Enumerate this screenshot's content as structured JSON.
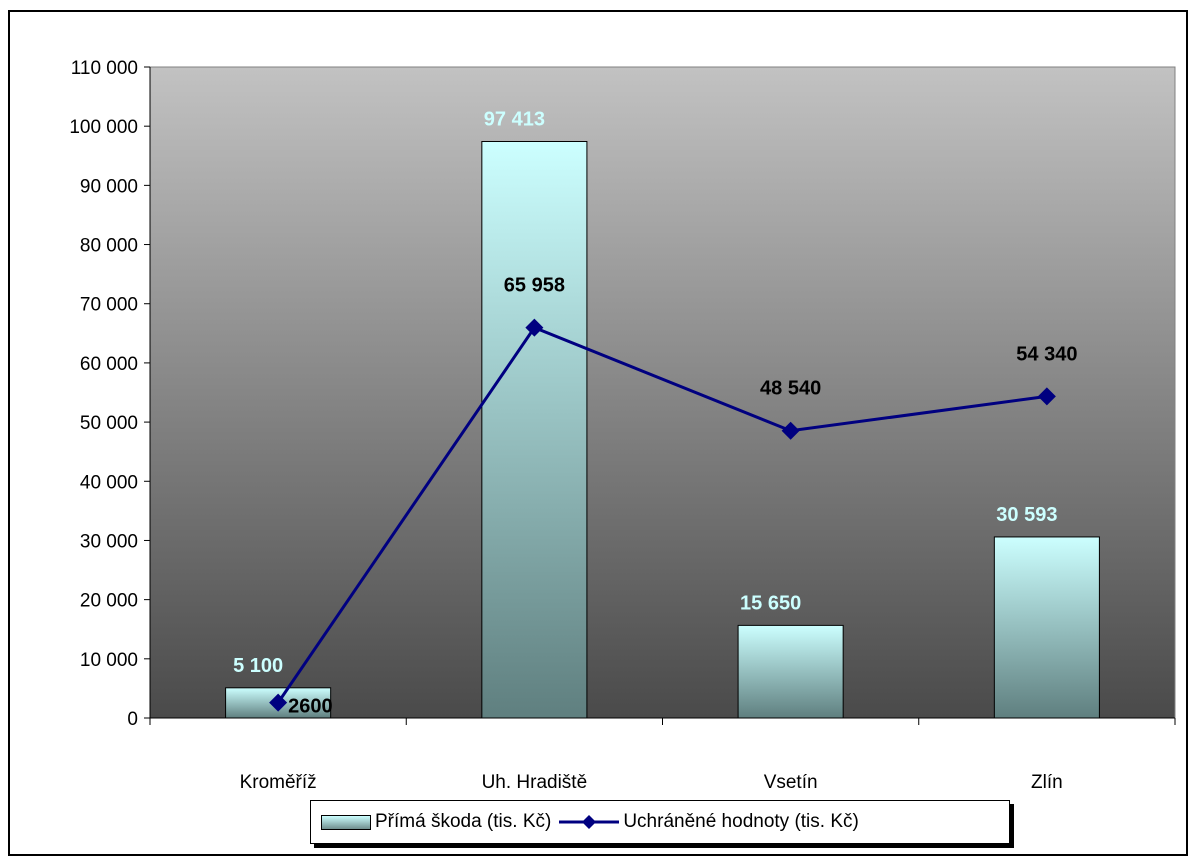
{
  "chart_data": {
    "type": "bar",
    "categories": [
      "Kroměříž",
      "Uh. Hradiště",
      "Vsetín",
      "Zlín"
    ],
    "ylim": [
      0,
      110000
    ],
    "yticks": [
      "0",
      "10 000",
      "20 000",
      "30 000",
      "40 000",
      "50 000",
      "60 000",
      "70 000",
      "80 000",
      "90 000",
      "100 000",
      "110 000"
    ],
    "grid": false,
    "legend_position": "bottom",
    "series": [
      {
        "name": "Přímá škoda (tis. Kč)",
        "kind": "bar",
        "values": [
          5100,
          97413,
          15650,
          30593
        ],
        "labels": [
          "5 100",
          "97 413",
          "15 650",
          "30 593"
        ],
        "color": "#ccffff"
      },
      {
        "name": "Uchráněné hodnoty (tis. Kč)",
        "kind": "line",
        "values": [
          2600,
          65958,
          48540,
          54340
        ],
        "labels": [
          "2600",
          "65 958",
          "48 540",
          "54 340"
        ],
        "color": "#000080"
      }
    ]
  },
  "colors": {
    "plot_top": "#c0c0c0",
    "plot_bottom": "#4d4d4d",
    "bar_top": "#ccffff",
    "bar_bottom": "#5f7f7f",
    "line": "#000080",
    "bar_label": "#ccffff"
  }
}
